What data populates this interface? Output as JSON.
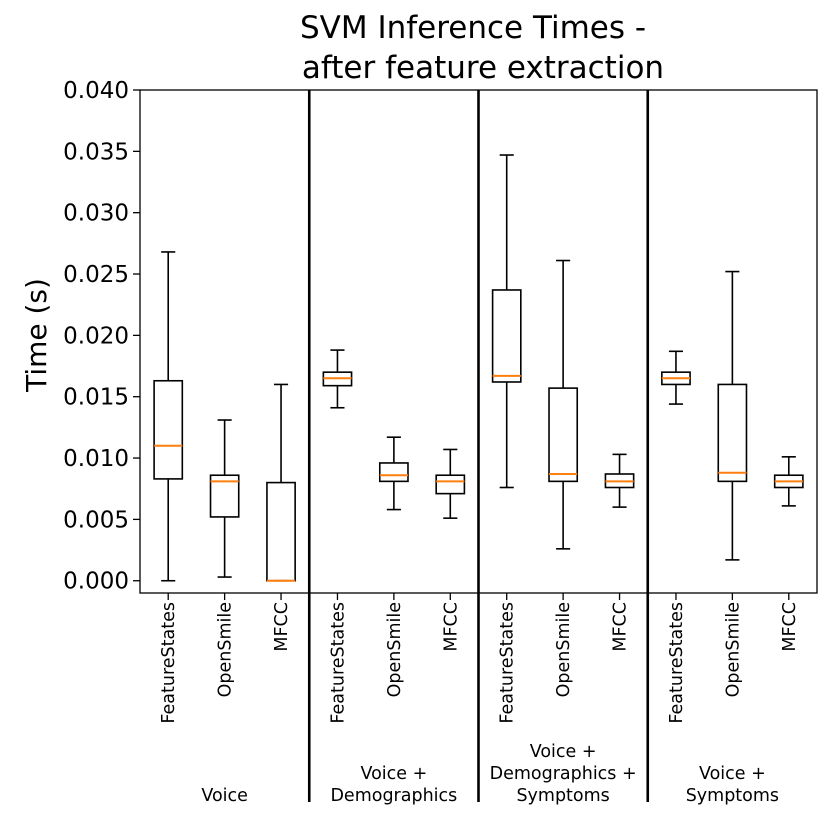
{
  "chart_data": {
    "type": "boxplot",
    "title_lines": [
      "SVM Inference Times -",
      "after feature extraction"
    ],
    "ylabel": "Time (s)",
    "xlabel": "",
    "ylim": [
      -0.001,
      0.04
    ],
    "yticks": [
      0.0,
      0.005,
      0.01,
      0.015,
      0.02,
      0.025,
      0.03,
      0.035,
      0.04
    ],
    "ytick_labels": [
      "0.000",
      "0.005",
      "0.010",
      "0.015",
      "0.020",
      "0.025",
      "0.030",
      "0.035",
      "0.040"
    ],
    "median_color": "#ff7f0e",
    "box_color": "#000000",
    "groups": [
      {
        "label_lines": [
          "Voice"
        ],
        "boxes": [
          {
            "label": "FeatureStates",
            "whisker_low": 0.0,
            "q1": 0.0083,
            "median": 0.011,
            "q3": 0.0163,
            "whisker_high": 0.0268
          },
          {
            "label": "OpenSmile",
            "whisker_low": 0.0003,
            "q1": 0.0052,
            "median": 0.0081,
            "q3": 0.0086,
            "whisker_high": 0.0131
          },
          {
            "label": "MFCC",
            "whisker_low": 0.0,
            "q1": 0.0,
            "median": 0.0,
            "q3": 0.008,
            "whisker_high": 0.016
          }
        ]
      },
      {
        "label_lines": [
          "Voice +",
          "Demographics"
        ],
        "boxes": [
          {
            "label": "FeatureStates",
            "whisker_low": 0.0141,
            "q1": 0.0159,
            "median": 0.0165,
            "q3": 0.017,
            "whisker_high": 0.0188
          },
          {
            "label": "OpenSmile",
            "whisker_low": 0.0058,
            "q1": 0.0081,
            "median": 0.0086,
            "q3": 0.0096,
            "whisker_high": 0.0117
          },
          {
            "label": "MFCC",
            "whisker_low": 0.0051,
            "q1": 0.0071,
            "median": 0.0081,
            "q3": 0.0086,
            "whisker_high": 0.0107
          }
        ]
      },
      {
        "label_lines": [
          "Voice +",
          "Demographics +",
          "Symptoms"
        ],
        "boxes": [
          {
            "label": "FeatureStates",
            "whisker_low": 0.0076,
            "q1": 0.0162,
            "median": 0.0167,
            "q3": 0.0237,
            "whisker_high": 0.0347
          },
          {
            "label": "OpenSmile",
            "whisker_low": 0.0026,
            "q1": 0.0081,
            "median": 0.0087,
            "q3": 0.0157,
            "whisker_high": 0.0261
          },
          {
            "label": "MFCC",
            "whisker_low": 0.006,
            "q1": 0.0076,
            "median": 0.0081,
            "q3": 0.0087,
            "whisker_high": 0.0103
          }
        ]
      },
      {
        "label_lines": [
          "Voice +",
          "Symptoms"
        ],
        "boxes": [
          {
            "label": "FeatureStates",
            "whisker_low": 0.0144,
            "q1": 0.016,
            "median": 0.0165,
            "q3": 0.017,
            "whisker_high": 0.0187
          },
          {
            "label": "OpenSmile",
            "whisker_low": 0.0017,
            "q1": 0.0081,
            "median": 0.0088,
            "q3": 0.016,
            "whisker_high": 0.0252
          },
          {
            "label": "MFCC",
            "whisker_low": 0.0061,
            "q1": 0.0076,
            "median": 0.0081,
            "q3": 0.0086,
            "whisker_high": 0.0101
          }
        ]
      }
    ]
  }
}
